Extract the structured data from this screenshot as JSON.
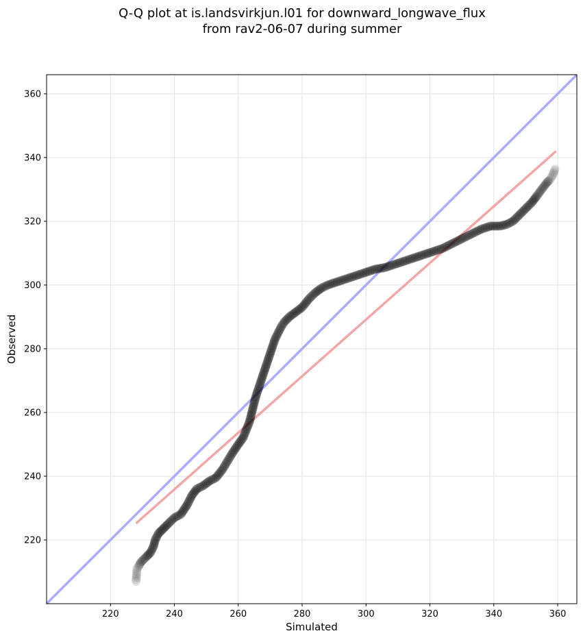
{
  "chart_data": {
    "type": "scatter",
    "title": [
      "Q-Q plot at is.landsvirkjun.l01 for downward_longwave_flux",
      "from rav2-06-07 during summer"
    ],
    "xlabel": "Simulated",
    "ylabel": "Observed",
    "xlim": [
      200,
      366
    ],
    "ylim": [
      200,
      366
    ],
    "xticks": [
      220,
      240,
      260,
      280,
      300,
      320,
      340,
      360
    ],
    "yticks": [
      220,
      240,
      260,
      280,
      300,
      320,
      340,
      360
    ],
    "grid": true,
    "identity_line": {
      "color": "#aaaaff",
      "from": [
        200,
        200
      ],
      "to": [
        366,
        366
      ]
    },
    "fit_line": {
      "color": "#f4a6a6",
      "from": [
        228,
        225.2
      ],
      "to": [
        359.5,
        342
      ]
    },
    "quantiles": {
      "x": [
        228,
        228.3,
        229,
        229.5,
        230.5,
        231.5,
        232.5,
        233.5,
        234,
        235,
        236,
        237,
        238,
        240,
        242,
        244,
        245.5,
        247,
        249,
        251,
        253,
        255,
        256.5,
        258,
        260,
        261.5,
        262.5,
        263.5,
        264.5,
        265.5,
        266.5,
        267.5,
        268.5,
        269.5,
        270.5,
        271.5,
        272.5,
        273.5,
        274.5,
        276,
        278,
        280,
        282,
        284,
        286,
        288,
        291,
        294,
        297,
        300,
        303,
        306,
        309,
        312,
        315,
        318,
        321,
        324,
        327,
        330,
        333,
        336,
        339,
        342,
        344,
        346,
        348,
        350,
        352,
        353.5,
        355,
        356.5,
        357.5,
        358.5,
        359.2
      ],
      "y": [
        207,
        211,
        212,
        213,
        214,
        215,
        216,
        218,
        220,
        222,
        223,
        224,
        225,
        227,
        228,
        231,
        234,
        236,
        237,
        238.5,
        239.5,
        242,
        244.5,
        247,
        250,
        252,
        254.5,
        257,
        261,
        265,
        268,
        271,
        274,
        277,
        280,
        283,
        285,
        287,
        288.5,
        290,
        291.5,
        293,
        295.5,
        297.5,
        299,
        300,
        301,
        302,
        303,
        304,
        305,
        305.5,
        306.5,
        307.5,
        308.5,
        309.5,
        310.5,
        311.5,
        313,
        314.5,
        316,
        317.5,
        318.5,
        318.5,
        319,
        320,
        322,
        324,
        326,
        328,
        330,
        332,
        333,
        334.5,
        336.5
      ]
    }
  }
}
